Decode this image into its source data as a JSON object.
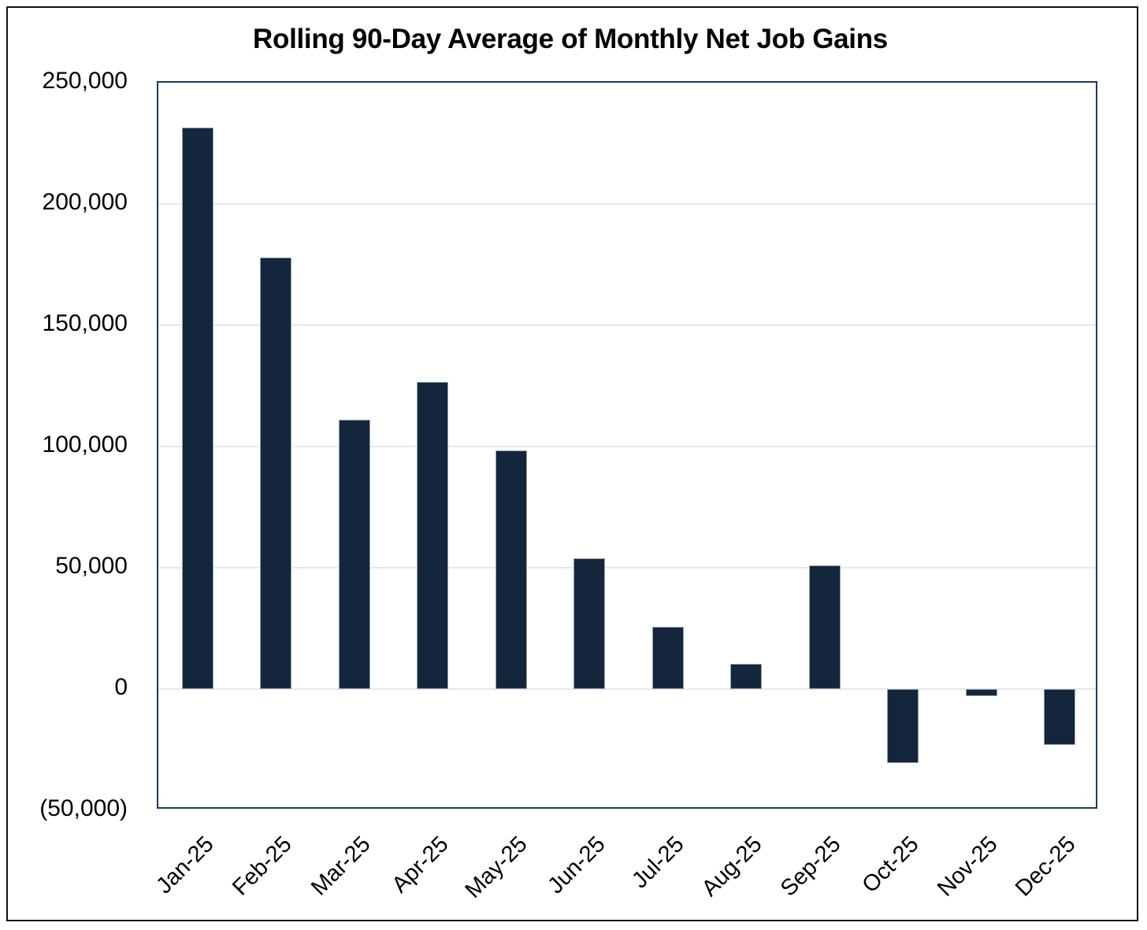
{
  "chart_data": {
    "type": "bar",
    "title": "Rolling 90-Day Average of Monthly Net Job Gains",
    "xlabel": "",
    "ylabel": "",
    "categories": [
      "Jan-25",
      "Feb-25",
      "Mar-25",
      "Apr-25",
      "May-25",
      "Jun-25",
      "Jul-25",
      "Aug-25",
      "Sep-25",
      "Oct-25",
      "Nov-25",
      "Dec-25"
    ],
    "values": [
      231500,
      178000,
      111000,
      126500,
      98500,
      54000,
      25500,
      10500,
      51000,
      -30500,
      -3000,
      -23000
    ],
    "ylim": [
      -50000,
      250000
    ],
    "y_ticks": [
      {
        "value": 250000,
        "label": "250,000"
      },
      {
        "value": 200000,
        "label": "200,000"
      },
      {
        "value": 150000,
        "label": "150,000"
      },
      {
        "value": 100000,
        "label": "100,000"
      },
      {
        "value": 50000,
        "label": "50,000"
      },
      {
        "value": 0,
        "label": "0"
      },
      {
        "value": -50000,
        "label": "(50,000)"
      }
    ],
    "negative_label_format": "parentheses",
    "grid": "horizontal-on",
    "legend": "none",
    "colors": {
      "bar_fill": "#13263c",
      "bar_outline": "#93a2b2",
      "plot_border": "#1d3a5f",
      "gridline": "#e8e8e8",
      "title_text": "#000000",
      "tick_text": "#000000",
      "outer_frame": "#111111",
      "background": "#ffffff"
    }
  }
}
